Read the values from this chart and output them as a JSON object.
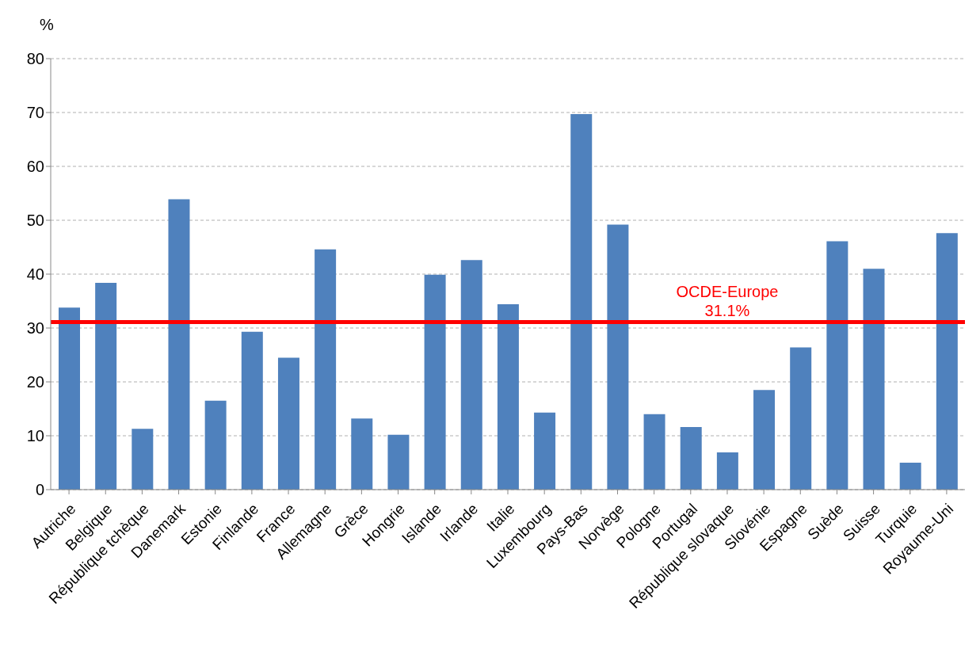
{
  "chart_data": {
    "type": "bar",
    "ylabel": "%",
    "categories": [
      "Autriche",
      "Belgique",
      "République tchèque",
      "Danemark",
      "Estonie",
      "Finlande",
      "France",
      "Allemagne",
      "Grèce",
      "Hongrie",
      "Islande",
      "Irlande",
      "Italie",
      "Luxembourg",
      "Pays-Bas",
      "Norvège",
      "Pologne",
      "Portugal",
      "République slovaque",
      "Slovénie",
      "Espagne",
      "Suède",
      "Suisse",
      "Turquie",
      "Royaume-Uni"
    ],
    "values": [
      33.8,
      38.4,
      11.3,
      53.9,
      16.5,
      29.3,
      24.5,
      44.6,
      13.2,
      10.2,
      39.9,
      42.6,
      34.4,
      14.3,
      69.7,
      49.2,
      14.0,
      11.6,
      6.9,
      18.5,
      26.4,
      46.1,
      41.0,
      5.0,
      47.6
    ],
    "color": "#4f81bd",
    "ylim": [
      0,
      80
    ],
    "yticks": [
      0,
      10,
      20,
      30,
      40,
      50,
      60,
      70,
      80
    ],
    "grid": "y",
    "ref_lines": [
      {
        "axis": "y",
        "value": 31.1,
        "label": "OCDE-Europe\n31.1%",
        "color": "#ff0000"
      }
    ]
  }
}
